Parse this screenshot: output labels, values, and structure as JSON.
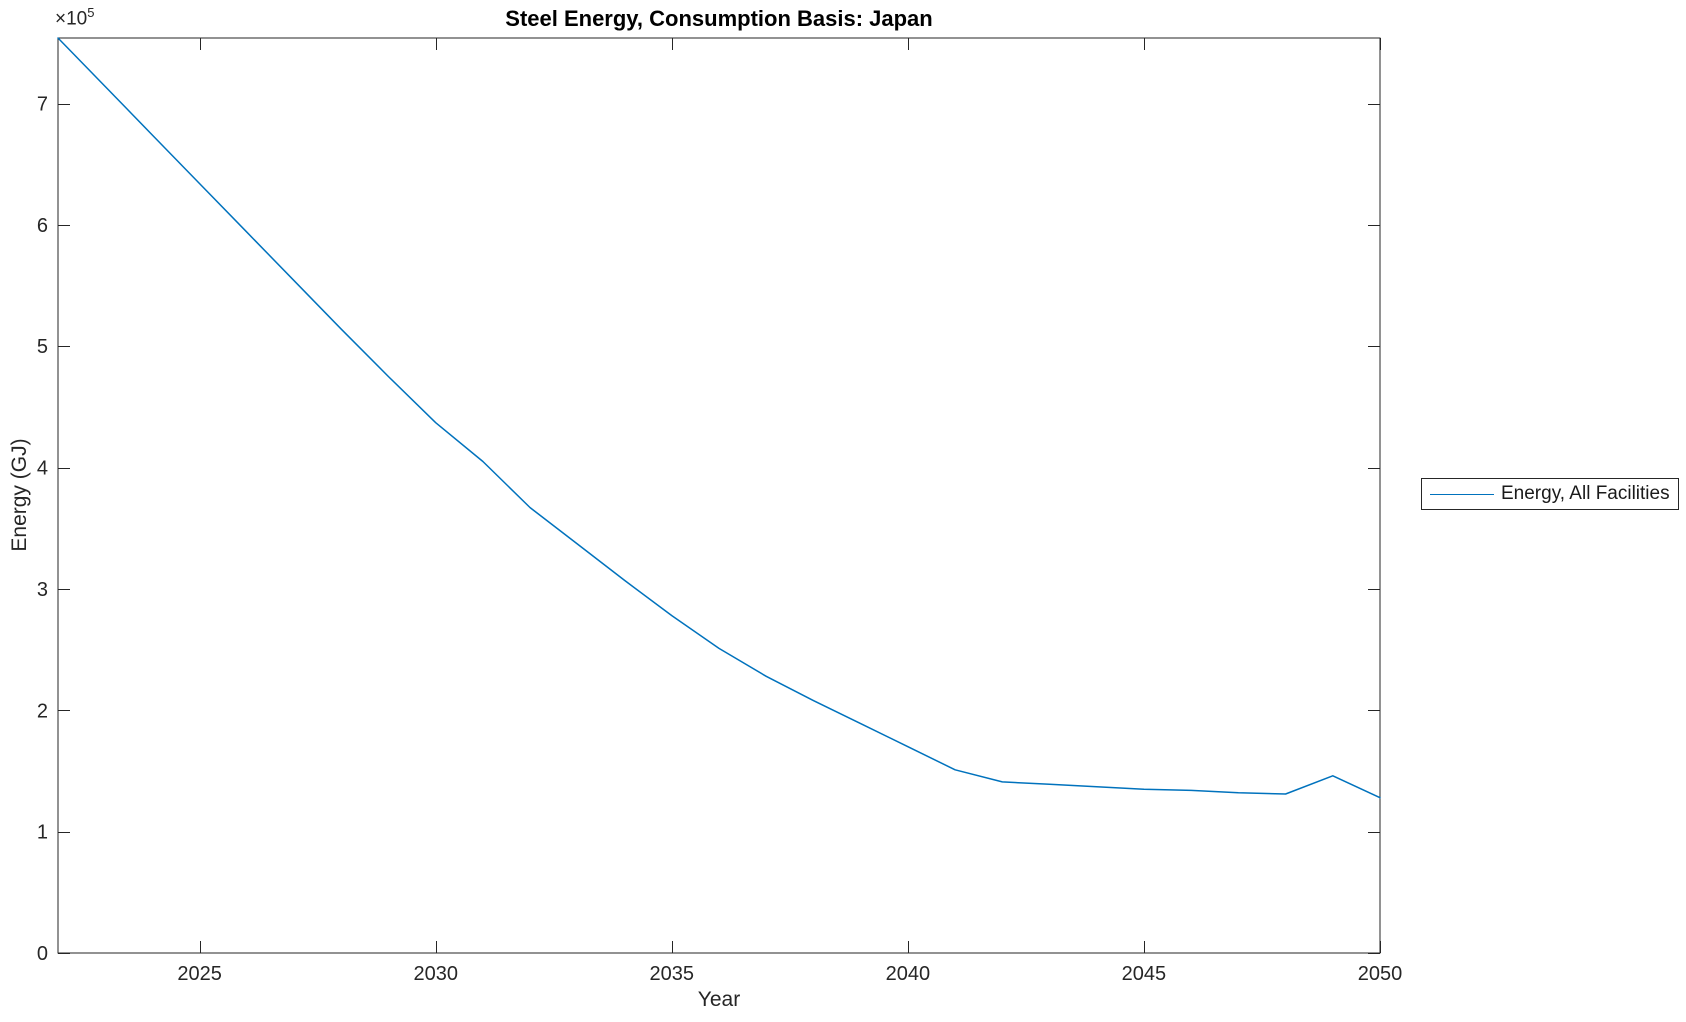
{
  "figure": {
    "title": "Steel Energy, Consumption Basis: Japan",
    "xlabel": "Year",
    "ylabel": "Energy (GJ)",
    "y_exponent_base": "×10",
    "y_exponent_sup": "5"
  },
  "legend": {
    "position": "right-outside",
    "entries": [
      {
        "label": "Energy, All Facilities",
        "color": "#0072BD"
      }
    ]
  },
  "colors": {
    "line": "#0072BD",
    "axis": "#262626",
    "tick_text": "#262626",
    "title_text": "#000000",
    "background": "#ffffff"
  },
  "chart_data": {
    "type": "line",
    "title": "Steel Energy, Consumption Basis: Japan",
    "xlabel": "Year",
    "ylabel": "Energy (GJ)",
    "x": [
      2022,
      2023,
      2024,
      2025,
      2026,
      2027,
      2028,
      2029,
      2030,
      2031,
      2032,
      2033,
      2034,
      2035,
      2036,
      2037,
      2038,
      2039,
      2040,
      2041,
      2042,
      2043,
      2044,
      2045,
      2046,
      2047,
      2048,
      2049,
      2050
    ],
    "series": [
      {
        "name": "Energy, All Facilities",
        "color": "#0072BD",
        "values": [
          754000,
          714000,
          674000,
          634000,
          594000,
          554000,
          514000,
          475000,
          437000,
          405000,
          367000,
          337000,
          307000,
          278000,
          251000,
          228000,
          208000,
          189000,
          170000,
          151000,
          141000,
          139000,
          137000,
          135000,
          134000,
          132000,
          131000,
          146000,
          128000
        ]
      }
    ],
    "xlim": [
      2022,
      2050
    ],
    "ylim": [
      0,
      754000
    ],
    "xticks": [
      2025,
      2030,
      2035,
      2040,
      2045,
      2050
    ],
    "yticks": [
      0,
      100000,
      200000,
      300000,
      400000,
      500000,
      600000,
      700000
    ],
    "ytick_labels": [
      "0",
      "1",
      "2",
      "3",
      "4",
      "5",
      "6",
      "7"
    ],
    "y_multiplier_label": "×10^5",
    "grid": false,
    "legend_position": "right-outside"
  }
}
